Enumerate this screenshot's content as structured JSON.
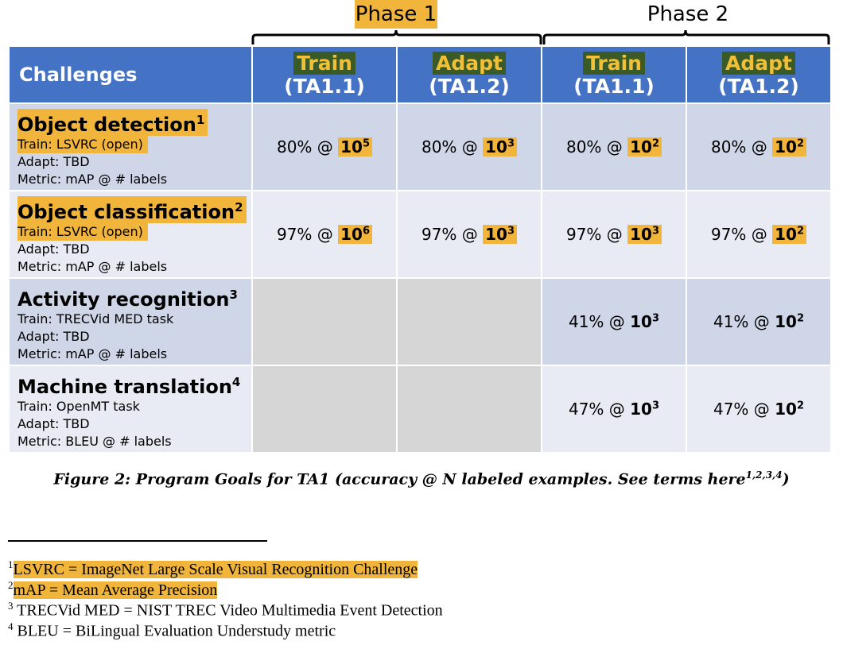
{
  "phases": {
    "phase1": "Phase 1",
    "phase2": "Phase 2"
  },
  "header": {
    "challenges": "Challenges",
    "train": "Train",
    "adapt": "Adapt",
    "ta11": "(TA1.1)",
    "ta12": "(TA1.2)"
  },
  "rows": [
    {
      "name": "Object detection",
      "sup": "1",
      "train": "Train: LSVRC (open)",
      "adapt": "Adapt: TBD",
      "metric": "Metric: mAP @ # labels",
      "v1p": "80% @ ",
      "v1b": "10",
      "v1e": "5",
      "v2p": "80% @ ",
      "v2b": "10",
      "v2e": "3",
      "v3p": "80% @ ",
      "v3b": "10",
      "v3e": "2",
      "v4p": "80% @ ",
      "v4b": "10",
      "v4e": "2"
    },
    {
      "name": "Object classification",
      "sup": "2",
      "train": "Train: LSVRC (open)",
      "adapt": "Adapt: TBD",
      "metric": "Metric: mAP @ # labels",
      "v1p": "97% @ ",
      "v1b": "10",
      "v1e": "6",
      "v2p": "97% @ ",
      "v2b": "10",
      "v2e": "3",
      "v3p": "97% @ ",
      "v3b": "10",
      "v3e": "3",
      "v4p": "97% @ ",
      "v4b": "10",
      "v4e": "2"
    },
    {
      "name": "Activity recognition",
      "sup": "3",
      "train": "Train: TRECVid MED task",
      "adapt": "Adapt: TBD",
      "metric": "Metric: mAP @ # labels",
      "v3p": "41% @ ",
      "v3b": "10",
      "v3e": "3",
      "v4p": "41% @ ",
      "v4b": "10",
      "v4e": "2"
    },
    {
      "name": "Machine translation",
      "sup": "4",
      "train": "Train: OpenMT task",
      "adapt": "Adapt: TBD",
      "metric": "Metric: BLEU @ # labels",
      "v3p": "47% @ ",
      "v3b": "10",
      "v3e": "3",
      "v4p": "47% @ ",
      "v4b": "10",
      "v4e": "2"
    }
  ],
  "caption": {
    "text": "Figure 2: Program Goals for TA1 (accuracy @ N labeled examples. See terms here",
    "sup": "1,2,3,4",
    "close": ")"
  },
  "footnotes": [
    {
      "num": "1",
      "text": "LSVRC = ImageNet Large Scale Visual Recognition Challenge"
    },
    {
      "num": "2",
      "text": "mAP = Mean Average Precision"
    },
    {
      "num": "3",
      "text": "TRECVid MED = NIST TREC Video Multimedia Event Detection"
    },
    {
      "num": "4",
      "text": "BLEU = BiLingual Evaluation Understudy metric"
    }
  ],
  "colors": {
    "header_blue": "#4472c4",
    "highlight_yellow": "#f2b53c",
    "row_dark": "#cfd6e8",
    "row_light": "#e8ebf4",
    "gray_cell": "#d6d6d6"
  }
}
